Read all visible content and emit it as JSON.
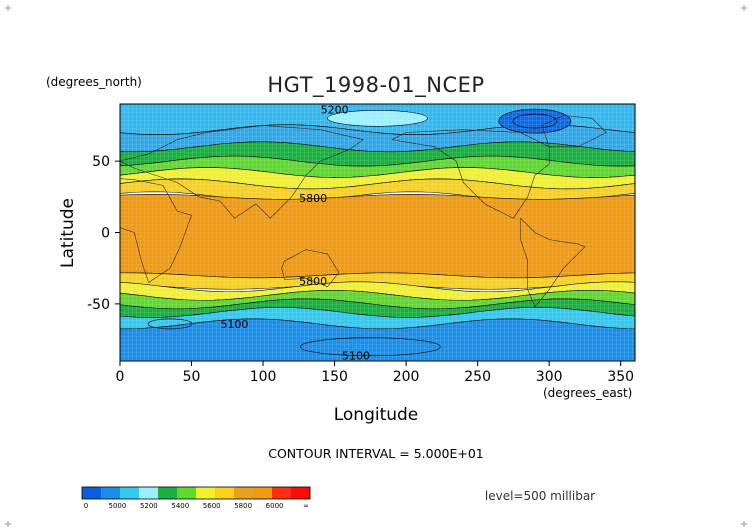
{
  "chart_data": {
    "type": "heatmap",
    "title": "HGT_1998-01_NCEP",
    "xlabel": "Longitude",
    "ylabel": "Latitude",
    "x_unit": "(degrees_east)",
    "y_unit": "(degrees_north)",
    "xlim": [
      0,
      360
    ],
    "ylim": [
      -90,
      90
    ],
    "x_ticks": [
      0,
      50,
      100,
      150,
      200,
      250,
      300,
      350
    ],
    "y_ticks": [
      50,
      0,
      -50
    ],
    "contour_interval_text": "CONTOUR INTERVAL = 5.000E+01",
    "level_text": "level=500 millibar",
    "contour_labels": [
      {
        "text": "5200",
        "lon": 150,
        "lat": 86
      },
      {
        "text": "5800",
        "lon": 135,
        "lat": 24
      },
      {
        "text": "5800",
        "lon": 135,
        "lat": -34
      },
      {
        "text": "5100",
        "lon": 80,
        "lat": -64
      },
      {
        "text": "5100",
        "lon": 165,
        "lat": -86
      }
    ],
    "colorbar": {
      "labels": [
        "0",
        "5000",
        "5200",
        "5400",
        "5600",
        "5800",
        "6000",
        "∞"
      ],
      "colors": [
        "#0a5fe0",
        "#1a8ee8",
        "#33c9f0",
        "#9af0ff",
        "#18b040",
        "#60d830",
        "#f0f030",
        "#f8d020",
        "#e8a020",
        "#f09a10",
        "#ff3010",
        "#ff0a0a"
      ]
    },
    "bands": [
      {
        "lat_from": 90,
        "lat_to": 72,
        "color": "#33b8f0",
        "height": "5200-5300"
      },
      {
        "lat_from": 72,
        "lat_to": 60,
        "color": "#30a8e8",
        "height": "5300-5400"
      },
      {
        "lat_from": 60,
        "lat_to": 50,
        "color": "#18b040",
        "height": "5400-5500"
      },
      {
        "lat_from": 50,
        "lat_to": 42,
        "color": "#60d830",
        "height": "5500-5600"
      },
      {
        "lat_from": 42,
        "lat_to": 34,
        "color": "#f0f030",
        "height": "5600-5700"
      },
      {
        "lat_from": 34,
        "lat_to": 25,
        "color": "#f8d020",
        "height": "5700-5800"
      },
      {
        "lat_from": 25,
        "lat_to": -30,
        "color": "#f09a10",
        "height": "5800-5900"
      },
      {
        "lat_from": -30,
        "lat_to": -38,
        "color": "#f8d020",
        "height": "5700-5800"
      },
      {
        "lat_from": -38,
        "lat_to": -44,
        "color": "#f0f030",
        "height": "5600-5700"
      },
      {
        "lat_from": -44,
        "lat_to": -50,
        "color": "#60d830",
        "height": "5500-5600"
      },
      {
        "lat_from": -50,
        "lat_to": -56,
        "color": "#18b040",
        "height": "5400-5500"
      },
      {
        "lat_from": -56,
        "lat_to": -64,
        "color": "#33c9f0",
        "height": "5300-5400"
      },
      {
        "lat_from": -64,
        "lat_to": -90,
        "color": "#1a8ee8",
        "height": "5100-5300"
      }
    ]
  }
}
